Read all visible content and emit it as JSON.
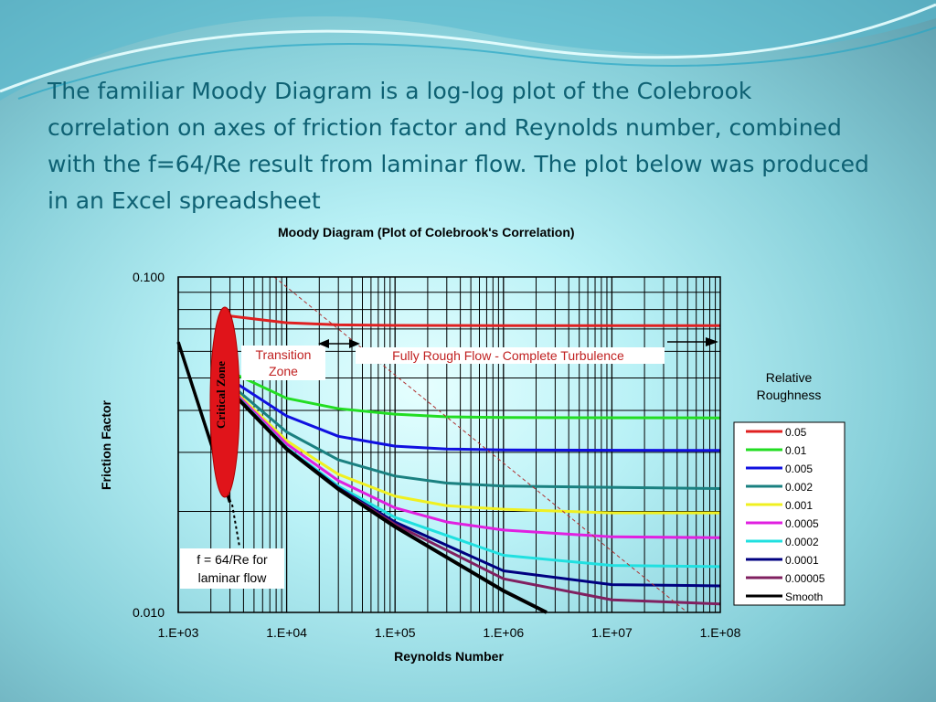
{
  "slide": {
    "text": "The familiar Moody Diagram is a log-log plot of the Colebrook correlation on axes of friction factor and Reynolds number, combined with the f=64/Re result from laminar flow. The plot below was produced in an Excel spreadsheet"
  },
  "colors": {
    "text": "#0e6173",
    "wave": "#2aa6c4",
    "critical_zone": "#e0141a"
  },
  "chart_data": {
    "type": "line",
    "title": "Moody Diagram (Plot of Colebrook's Correlation)",
    "xlabel": "Reynolds Number",
    "ylabel": "Friction Factor",
    "x_scale": "log",
    "y_scale": "log",
    "xlim": [
      1000,
      100000000
    ],
    "ylim": [
      0.01,
      0.1
    ],
    "x_ticks": [
      "1.E+03",
      "1.E+04",
      "1.E+05",
      "1.E+06",
      "1.E+07",
      "1.E+08"
    ],
    "y_ticks": [
      "0.100",
      "0.010"
    ],
    "grid": true,
    "legend_title": "Relative Roughness",
    "legend_position": "right",
    "annotations": {
      "critical_zone": "Critical Zone",
      "transition": "Transition Zone",
      "fully_rough": "Fully Rough Flow - Complete Turbulence",
      "laminar": "f = 64/Re for laminar flow"
    },
    "laminar": {
      "label": "f = 64/Re",
      "x": [
        1000,
        3000
      ],
      "y": [
        0.064,
        0.0213
      ]
    },
    "series": [
      {
        "name": "0.05",
        "color": "#e02020",
        "x": [
          2500,
          5000,
          10000,
          30000,
          100000,
          1000000,
          100000000
        ],
        "y": [
          0.077,
          0.075,
          0.073,
          0.072,
          0.0717,
          0.0716,
          0.0716
        ]
      },
      {
        "name": "0.01",
        "color": "#22dd22",
        "x": [
          3500,
          10000,
          30000,
          100000,
          300000,
          1000000,
          100000000
        ],
        "y": [
          0.051,
          0.0435,
          0.0405,
          0.039,
          0.0383,
          0.0381,
          0.038
        ]
      },
      {
        "name": "0.005",
        "color": "#1010e0",
        "x": [
          3500,
          10000,
          30000,
          100000,
          300000,
          1000000,
          100000000
        ],
        "y": [
          0.048,
          0.0385,
          0.0335,
          0.0313,
          0.0307,
          0.0305,
          0.0304
        ]
      },
      {
        "name": "0.002",
        "color": "#1a8080",
        "x": [
          3500,
          10000,
          30000,
          100000,
          300000,
          1000000,
          100000000
        ],
        "y": [
          0.046,
          0.0345,
          0.0285,
          0.0255,
          0.0243,
          0.0238,
          0.0234
        ]
      },
      {
        "name": "0.001",
        "color": "#f0f020",
        "x": [
          3500,
          10000,
          30000,
          100000,
          300000,
          1000000,
          10000000,
          100000000
        ],
        "y": [
          0.045,
          0.0325,
          0.0258,
          0.0222,
          0.0208,
          0.0203,
          0.0198,
          0.0198
        ]
      },
      {
        "name": "0.0005",
        "color": "#e020e0",
        "x": [
          3500,
          10000,
          30000,
          100000,
          300000,
          1000000,
          10000000,
          100000000
        ],
        "y": [
          0.0445,
          0.0318,
          0.0247,
          0.0205,
          0.0186,
          0.0176,
          0.0168,
          0.0167
        ]
      },
      {
        "name": "0.0002",
        "color": "#20e0e0",
        "x": [
          3500,
          10000,
          30000,
          100000,
          1000000,
          10000000,
          100000000
        ],
        "y": [
          0.044,
          0.031,
          0.0238,
          0.0192,
          0.0148,
          0.0138,
          0.0137
        ]
      },
      {
        "name": "0.0001",
        "color": "#000080",
        "x": [
          3500,
          10000,
          30000,
          100000,
          1000000,
          10000000,
          100000000
        ],
        "y": [
          0.0438,
          0.0308,
          0.0235,
          0.0186,
          0.0133,
          0.0121,
          0.012
        ]
      },
      {
        "name": "0.00005",
        "color": "#802060",
        "x": [
          3500,
          10000,
          30000,
          100000,
          1000000,
          10000000,
          100000000
        ],
        "y": [
          0.0437,
          0.0307,
          0.0234,
          0.0183,
          0.0126,
          0.0109,
          0.0106
        ]
      },
      {
        "name": "Smooth",
        "color": "#000000",
        "x": [
          3500,
          10000,
          30000,
          100000,
          1000000,
          2500000
        ],
        "y": [
          0.0436,
          0.0307,
          0.0233,
          0.018,
          0.0116,
          0.01
        ]
      }
    ]
  }
}
